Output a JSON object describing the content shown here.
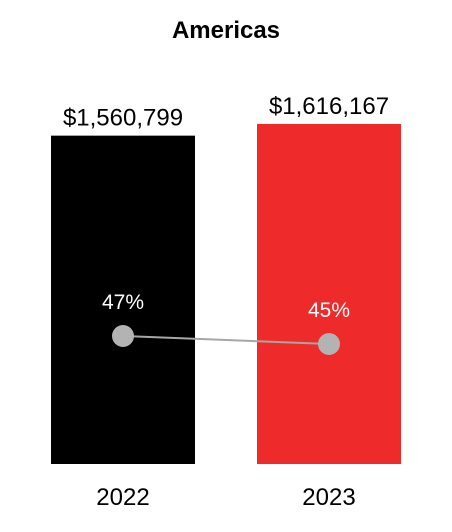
{
  "chart_data": {
    "type": "bar",
    "title": "Americas",
    "categories": [
      "2022",
      "2023"
    ],
    "values": [
      1560799,
      1616167
    ],
    "value_labels": [
      "$1,560,799",
      "$1,616,167"
    ],
    "ylim": [
      0,
      1616167
    ],
    "bar_colors": [
      "#000000",
      "#ee2a2a"
    ],
    "overlay_line": {
      "values": [
        47,
        45
      ],
      "labels": [
        "47%",
        "45%"
      ],
      "marker_color": "#b3b3b3",
      "line_color": "#a6a6a6",
      "label_color": "#ffffff"
    },
    "legend": "none",
    "grid": false
  }
}
